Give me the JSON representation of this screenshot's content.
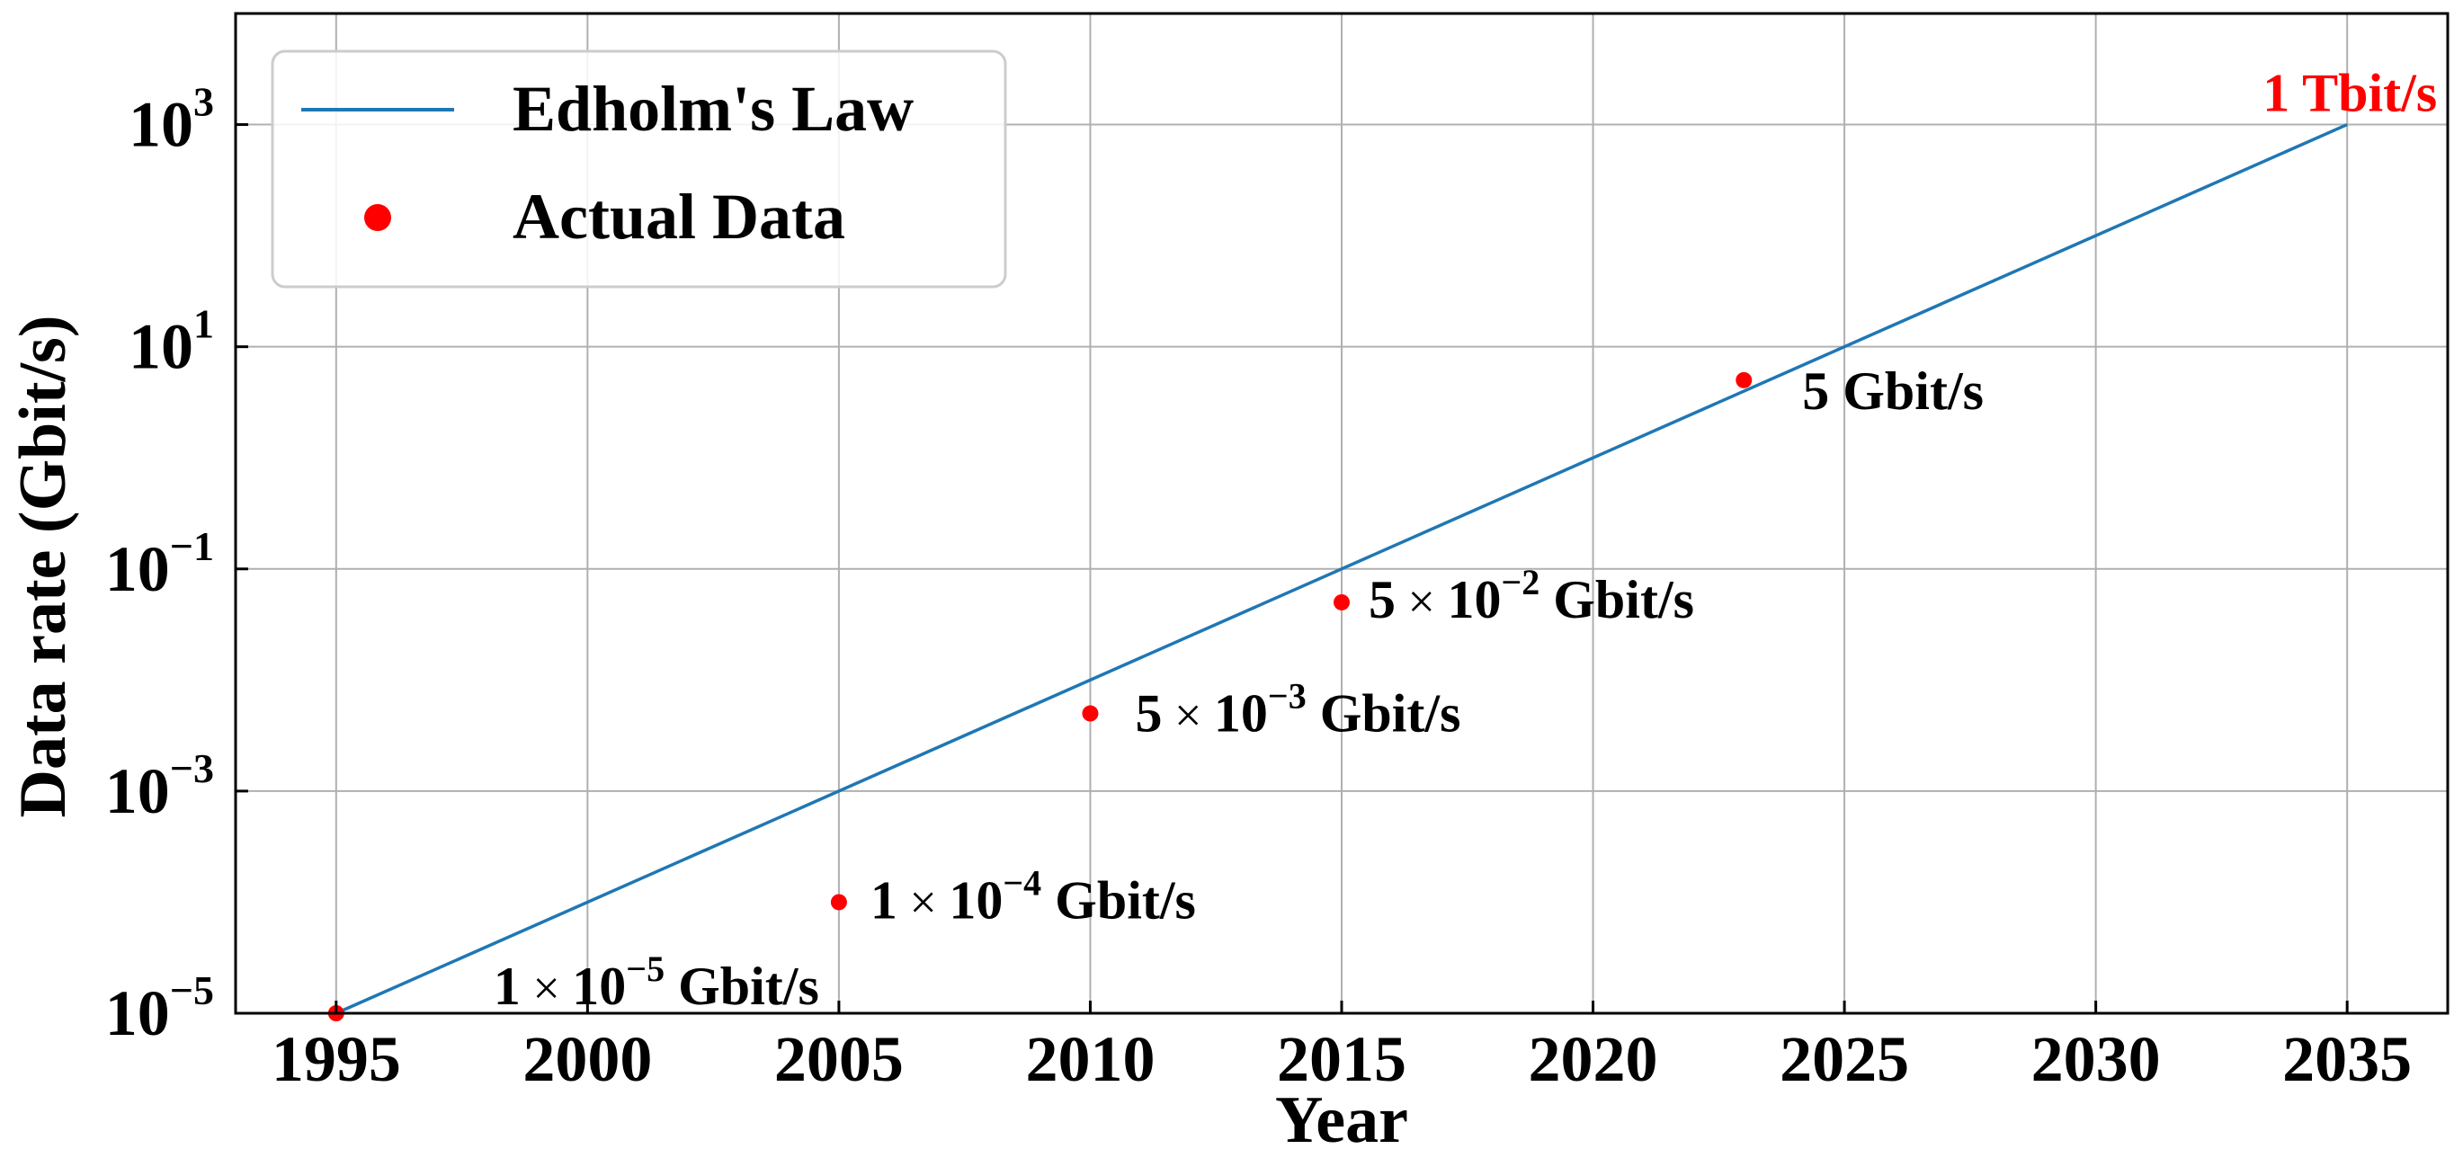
{
  "chart_data": {
    "type": "line",
    "title": "",
    "xlabel": "Year",
    "ylabel": "Data rate (Gbit/s)",
    "xlim": [
      1993,
      2037
    ],
    "ylim_log10": [
      -5,
      4
    ],
    "yscale": "log",
    "grid": true,
    "legend_position": "top-left",
    "x_ticks": [
      1995,
      2000,
      2005,
      2010,
      2015,
      2020,
      2025,
      2030,
      2035
    ],
    "y_ticks": [
      {
        "base": "10",
        "exp": "3",
        "value": 1000
      },
      {
        "base": "10",
        "exp": "1",
        "value": 10
      },
      {
        "base": "10",
        "exp": "−1",
        "value": 0.1
      },
      {
        "base": "10",
        "exp": "−3",
        "value": 0.001
      },
      {
        "base": "10",
        "exp": "−5",
        "value": 1e-05
      }
    ],
    "series": [
      {
        "name": "Edholm's Law",
        "kind": "line",
        "color": "#1f77b4",
        "x": [
          1995,
          2035
        ],
        "y": [
          1e-05,
          1000
        ]
      },
      {
        "name": "Actual Data",
        "kind": "scatter",
        "color": "#ff0000",
        "x": [
          1995,
          2005,
          2010,
          2015,
          2023
        ],
        "y": [
          1e-05,
          0.0001,
          0.005,
          0.05,
          5
        ]
      }
    ],
    "annotations": [
      {
        "x": 1995,
        "y": 1e-05,
        "mantissa": "1",
        "times": "×",
        "base": "10",
        "exp": "−5",
        "unit": "Gbit/s",
        "color": "#000000"
      },
      {
        "x": 2005,
        "y": 0.0001,
        "mantissa": "1",
        "times": "×",
        "base": "10",
        "exp": "−4",
        "unit": "Gbit/s",
        "color": "#000000"
      },
      {
        "x": 2010,
        "y": 0.005,
        "mantissa": "5",
        "times": "×",
        "base": "10",
        "exp": "−3",
        "unit": "Gbit/s",
        "color": "#000000"
      },
      {
        "x": 2015,
        "y": 0.05,
        "mantissa": "5",
        "times": "×",
        "base": "10",
        "exp": "−2",
        "unit": "Gbit/s",
        "color": "#000000"
      },
      {
        "x": 2023,
        "y": 5,
        "mantissa": "5",
        "times": "",
        "base": "",
        "exp": "",
        "unit": "Gbit/s",
        "color": "#000000"
      },
      {
        "x": 2035,
        "y": 1000,
        "mantissa": "1",
        "times": "",
        "base": "",
        "exp": "",
        "unit": "Tbit/s",
        "color": "#ff0000"
      }
    ]
  }
}
